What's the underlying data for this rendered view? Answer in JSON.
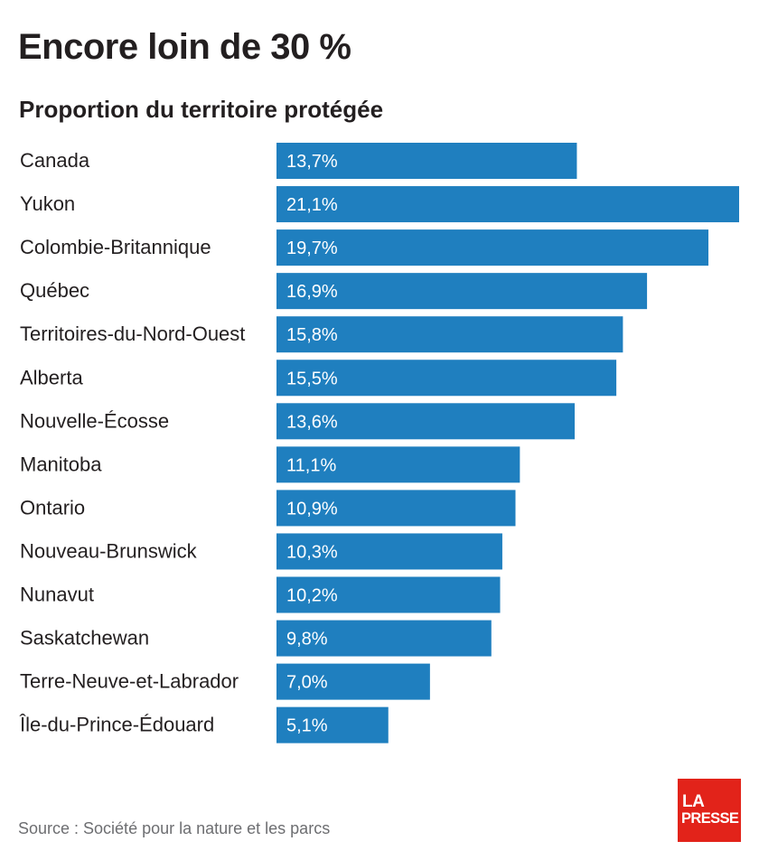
{
  "title": "Encore loin de 30 %",
  "subtitle": "Proportion du territoire protégée",
  "source": "Source : Société pour la nature et les parcs",
  "logo": {
    "line1": "LA",
    "line2": "PRESSE"
  },
  "colors": {
    "bar": "#1f7fbf",
    "bar_label": "#ffffff",
    "category_label": "#231f20",
    "logo_bg": "#e2231a"
  },
  "chart_data": {
    "type": "bar",
    "orientation": "horizontal",
    "title": "Encore loin de 30 %",
    "subtitle": "Proportion du territoire protégée",
    "categories": [
      "Canada",
      "Yukon",
      "Colombie-Britannique",
      "Québec",
      "Territoires-du-Nord-Ouest",
      "Alberta",
      "Nouvelle-Écosse",
      "Manitoba",
      "Ontario",
      "Nouveau-Brunswick",
      "Nunavut",
      "Saskatchewan",
      "Terre-Neuve-et-Labrador",
      "Île-du-Prince-Édouard"
    ],
    "values": [
      13.7,
      21.1,
      19.7,
      16.9,
      15.8,
      15.5,
      13.6,
      11.1,
      10.9,
      10.3,
      10.2,
      9.8,
      7.0,
      5.1
    ],
    "value_labels": [
      "13,7%",
      "21,1%",
      "19,7%",
      "16,9%",
      "15,8%",
      "15,5%",
      "13,6%",
      "11,1%",
      "10,9%",
      "10,3%",
      "10,2%",
      "9,8%",
      "7,0%",
      "5,1%"
    ],
    "xlim": [
      0,
      21.1
    ],
    "unit": "%",
    "grid": false,
    "legend": "none"
  }
}
